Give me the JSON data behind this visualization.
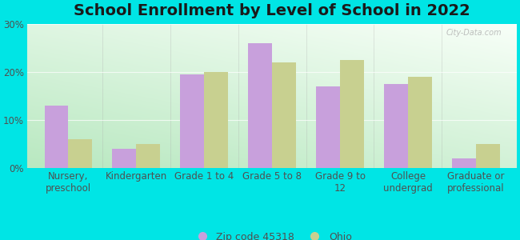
{
  "title": "School Enrollment by Level of School in 2022",
  "categories": [
    "Nursery,\npreschool",
    "Kindergarten",
    "Grade 1 to 4",
    "Grade 5 to 8",
    "Grade 9 to\n12",
    "College\nundergrad",
    "Graduate or\nprofessional"
  ],
  "zip_values": [
    13.0,
    4.0,
    19.5,
    26.0,
    17.0,
    17.5,
    2.0
  ],
  "ohio_values": [
    6.0,
    5.0,
    20.0,
    22.0,
    22.5,
    19.0,
    5.0
  ],
  "zip_color": "#c8a0dc",
  "ohio_color": "#c8d090",
  "background_color": "#00e5e5",
  "grad_bottom": "#b8e8c0",
  "grad_top": "#f0fff8",
  "ylim": [
    0,
    30
  ],
  "yticks": [
    0,
    10,
    20,
    30
  ],
  "zip_label": "Zip code 45318",
  "ohio_label": "Ohio",
  "watermark": "City-Data.com",
  "title_fontsize": 14,
  "tick_fontsize": 8.5,
  "legend_fontsize": 9,
  "bar_width": 0.35
}
